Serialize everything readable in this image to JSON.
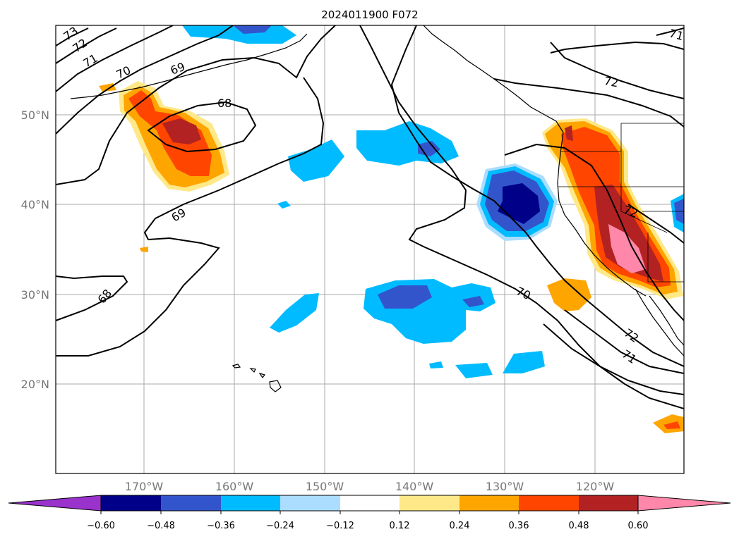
{
  "title": "2024011900 F072",
  "lat_labels": [
    "50°N",
    "40°N",
    "30°N",
    "20°N"
  ],
  "lon_labels": [
    "170°W",
    "160°W",
    "150°W",
    "140°W",
    "130°W",
    "120°W"
  ],
  "colorbar": {
    "labels": [
      "−0.60",
      "−0.48",
      "−0.36",
      "−0.24",
      "−0.12",
      "0.12",
      "0.24",
      "0.36",
      "0.48",
      "0.60"
    ],
    "colors": [
      "#9933cc",
      "#000088",
      "#3355cc",
      "#00bbff",
      "#aaddff",
      "#ffffff",
      "#ffe888",
      "#ffa500",
      "#ff4500",
      "#b22222",
      "#ff88aa"
    ]
  },
  "contour_labels": [
    "73",
    "72",
    "71",
    "70",
    "69",
    "68",
    "69",
    "68",
    "72",
    "70",
    "72",
    "71",
    "72",
    "71"
  ],
  "colors": {
    "land_outline": "#000000",
    "grid": "#aaaaaa",
    "contour": "#000000"
  }
}
